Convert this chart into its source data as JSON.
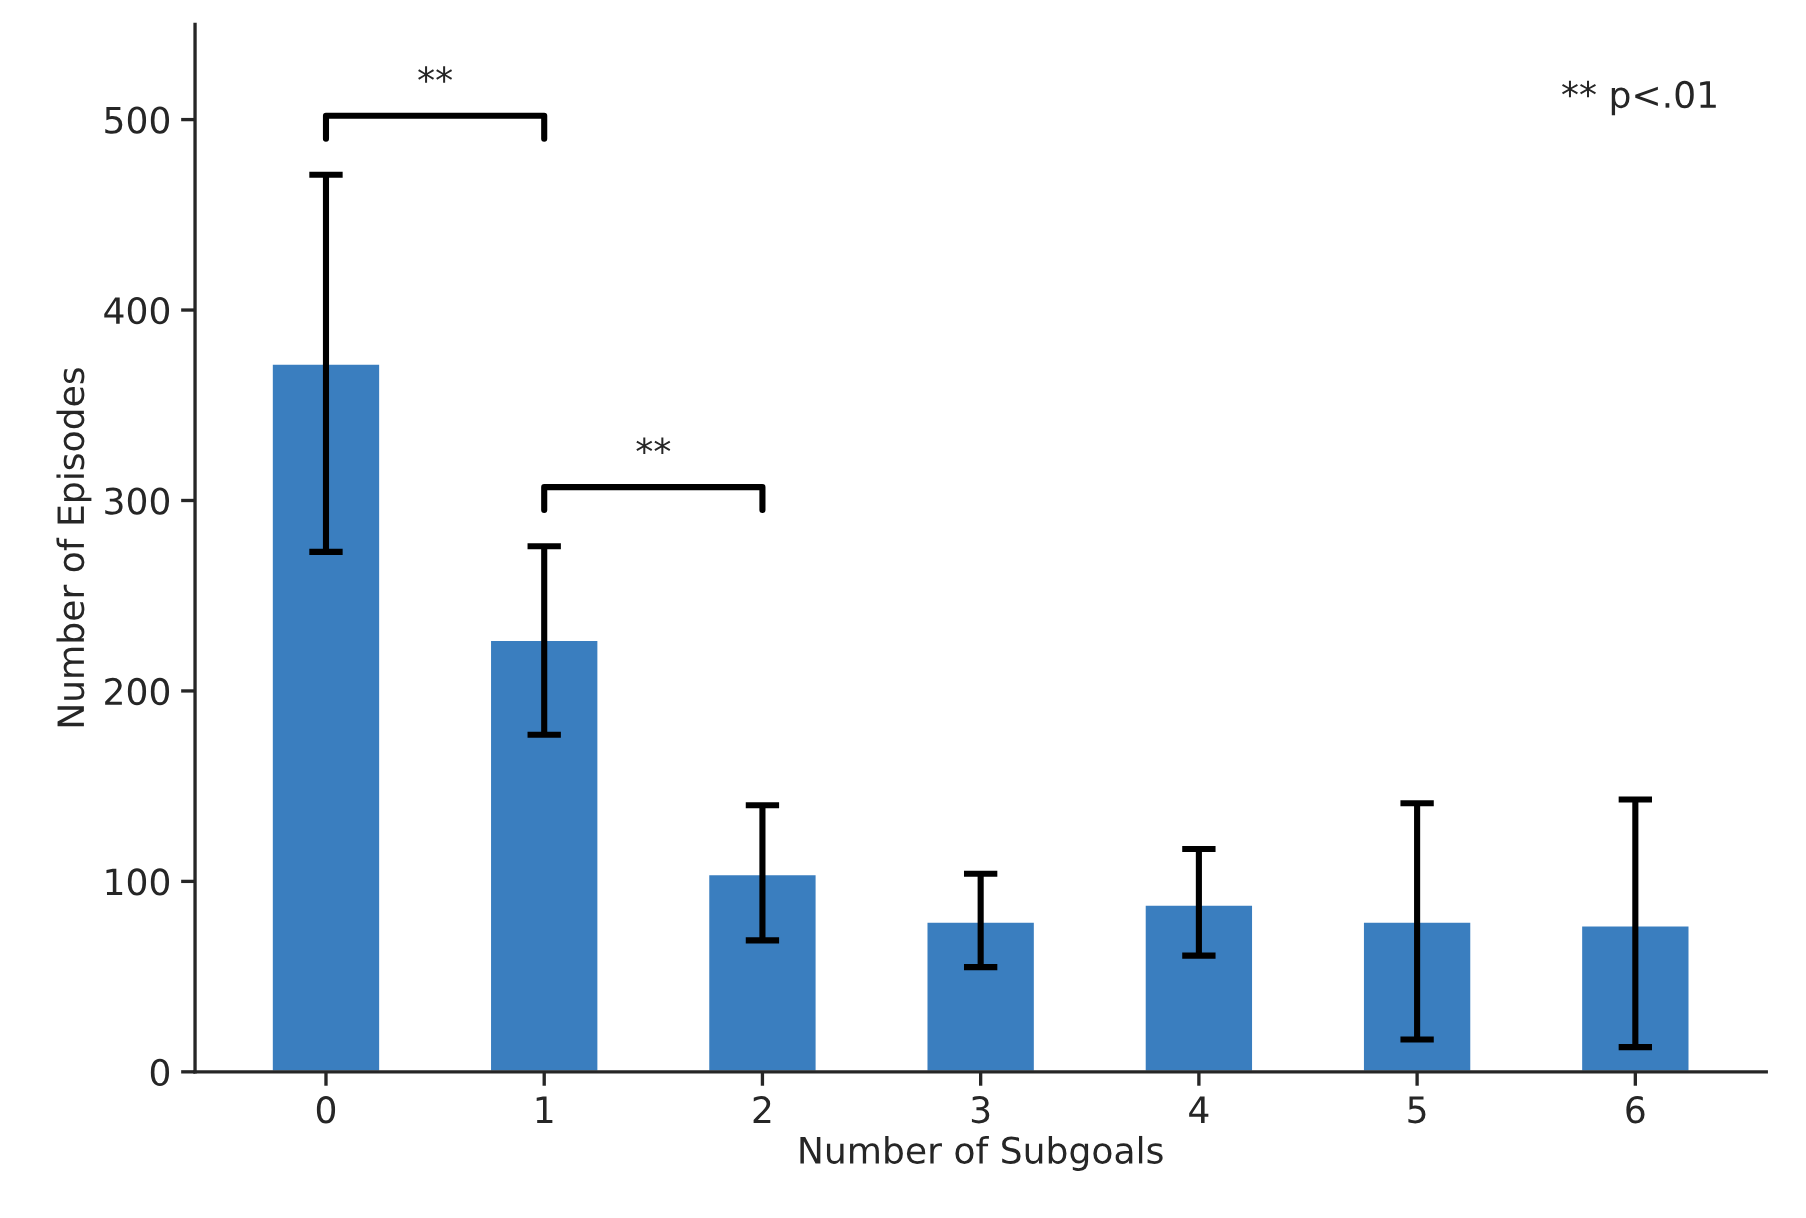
{
  "chart_data": {
    "type": "bar",
    "xlabel": "Number of Subgoals",
    "ylabel": "Number of Episodes",
    "categories": [
      "0",
      "1",
      "2",
      "3",
      "4",
      "5",
      "6"
    ],
    "values": [
      372,
      227,
      104,
      79,
      88,
      79,
      77
    ],
    "errors": [
      [
        273,
        471
      ],
      [
        177,
        276
      ],
      [
        69,
        140
      ],
      [
        55,
        104
      ],
      [
        61,
        117
      ],
      [
        17,
        141
      ],
      [
        13,
        143
      ]
    ],
    "color": "#3a7ebf",
    "ylim": [
      0,
      550
    ],
    "yticks": [
      0,
      100,
      200,
      300,
      400,
      500
    ],
    "grid": false,
    "legend": false,
    "annotations": [
      "**",
      "**",
      "** p<.01"
    ]
  }
}
